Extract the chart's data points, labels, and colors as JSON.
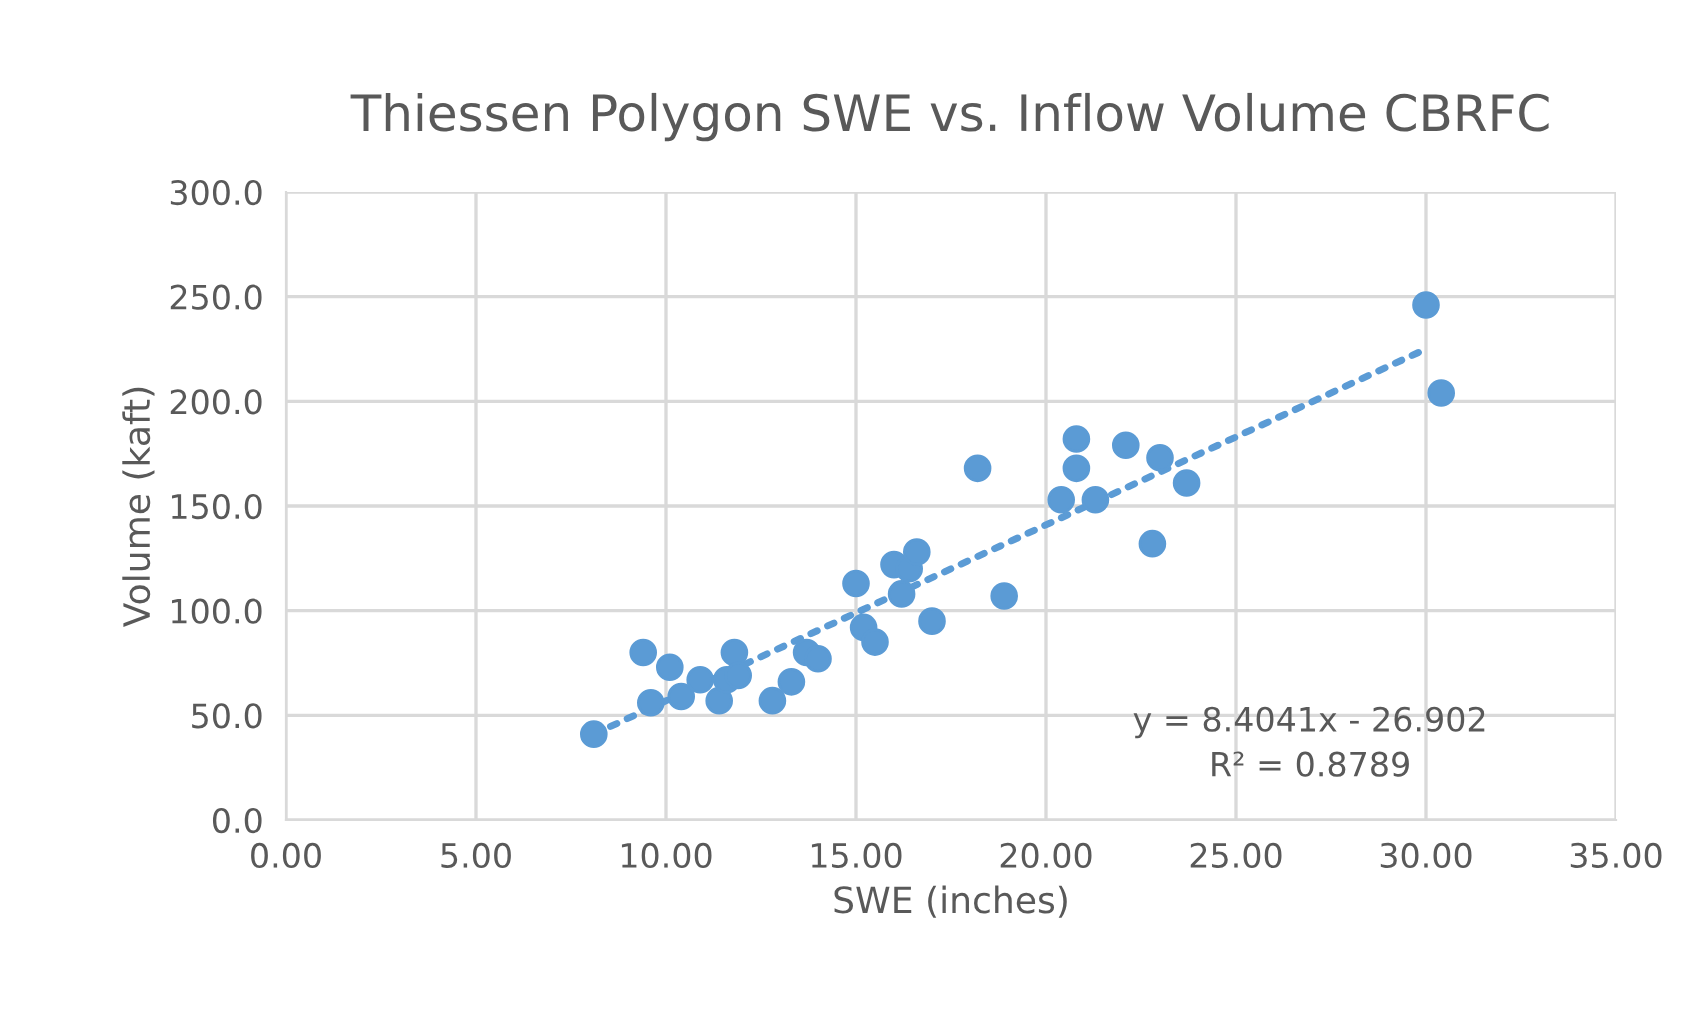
{
  "chart_data": {
    "type": "scatter",
    "title": "Thiessen Polygon SWE vs. Inflow Volume CBRFC",
    "xlabel": "SWE (inches)",
    "ylabel": "Volume (kaft)",
    "series": [
      {
        "color": "#5b9bd5",
        "marker": "circle",
        "x": [
          8.1,
          9.4,
          9.6,
          10.1,
          10.4,
          10.9,
          11.4,
          11.6,
          11.8,
          11.9,
          12.8,
          13.3,
          13.7,
          14.0,
          15.0,
          15.2,
          15.5,
          16.0,
          16.2,
          16.4,
          16.6,
          17.0,
          18.2,
          18.9,
          20.4,
          20.8,
          20.8,
          21.3,
          22.1,
          22.8,
          23.0,
          23.7,
          30.0,
          30.4
        ],
        "values": [
          41,
          80,
          56,
          73,
          59,
          67,
          57,
          67,
          80,
          69,
          57,
          66,
          80,
          77,
          113,
          92,
          85,
          122,
          108,
          120,
          128,
          95,
          168,
          107,
          153,
          182,
          168,
          153,
          179,
          132,
          173,
          161,
          246,
          204
        ]
      },
      {
        "type": "line",
        "color": "#5b9bd5",
        "line_style": "dotted",
        "marker": "none",
        "x": [
          8.1,
          30.0
        ],
        "values": [
          41,
          225
        ]
      }
    ],
    "annotations": [
      "y = 8.4041x - 26.902\nR² = 0.8789"
    ],
    "xlim": [
      0,
      35
    ],
    "xticks": [
      {
        "value": 0,
        "label": "0.00"
      },
      {
        "value": 5,
        "label": "5.00"
      },
      {
        "value": 10,
        "label": "10.00"
      },
      {
        "value": 15,
        "label": "15.00"
      },
      {
        "value": 20,
        "label": "20.00"
      },
      {
        "value": 25,
        "label": "25.00"
      },
      {
        "value": 30,
        "label": "30.00"
      },
      {
        "value": 35,
        "label": "35.00"
      }
    ],
    "ylim": [
      0,
      300
    ],
    "yticks": [
      {
        "value": 0,
        "label": "0.0"
      },
      {
        "value": 50,
        "label": "50.0"
      },
      {
        "value": 100,
        "label": "100.0"
      },
      {
        "value": 150,
        "label": "150.0"
      },
      {
        "value": 200,
        "label": "200.0"
      },
      {
        "value": 250,
        "label": "250.0"
      },
      {
        "value": 300,
        "label": "300.0"
      }
    ],
    "grid": true
  }
}
